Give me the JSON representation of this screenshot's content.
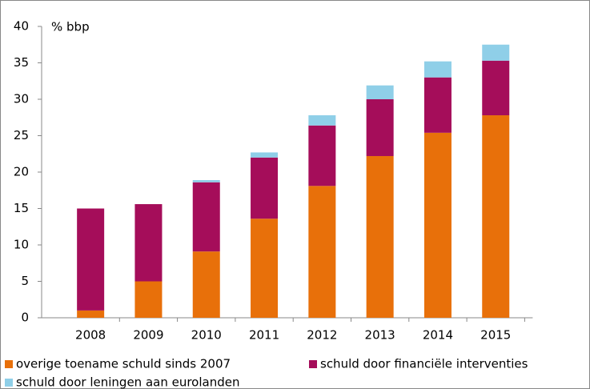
{
  "chart_data": {
    "type": "stacked-bar",
    "y_label": "% bbp",
    "categories": [
      "2008",
      "2009",
      "2010",
      "2011",
      "2012",
      "2013",
      "2014",
      "2015"
    ],
    "series": [
      {
        "name": "overige toename schuld sinds 2007",
        "color": "#e8700a",
        "values": [
          1.0,
          5.0,
          9.1,
          13.6,
          18.1,
          22.2,
          25.4,
          27.8
        ]
      },
      {
        "name": "schuld door financiële interventies",
        "color": "#a50d5a",
        "values": [
          14.0,
          10.6,
          9.5,
          8.4,
          8.3,
          7.8,
          7.6,
          7.5
        ]
      },
      {
        "name": "schuld door leningen aan eurolanden",
        "color": "#8fcfe8",
        "values": [
          0,
          0,
          0.3,
          0.7,
          1.4,
          1.9,
          2.2,
          2.2
        ]
      }
    ],
    "ylim": [
      0,
      40
    ],
    "yticks": [
      0,
      5,
      10,
      15,
      20,
      25,
      30,
      35,
      40
    ],
    "grid": false
  }
}
